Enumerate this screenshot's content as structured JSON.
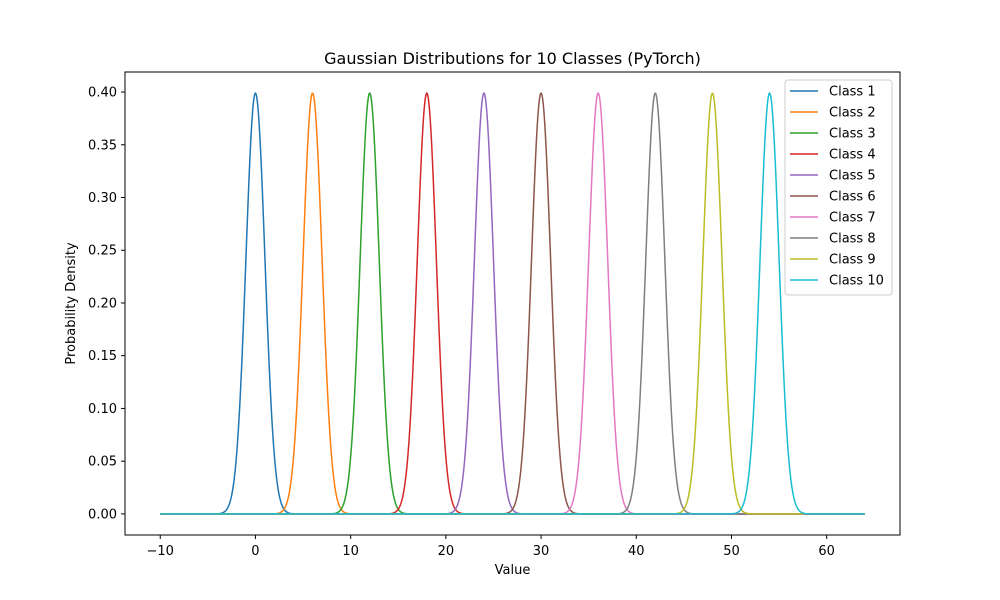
{
  "chart_data": {
    "type": "line",
    "title": "Gaussian Distributions for 10 Classes (PyTorch)",
    "xlabel": "Value",
    "ylabel": "Probability Density",
    "xlim": [
      -13.7,
      67.7
    ],
    "ylim": [
      -0.02,
      0.419
    ],
    "x_range": [
      -10,
      64
    ],
    "x_ticks": [
      -10,
      0,
      10,
      20,
      30,
      40,
      50,
      60
    ],
    "x_tick_labels": [
      "−10",
      "0",
      "10",
      "20",
      "30",
      "40",
      "50",
      "60"
    ],
    "y_ticks": [
      0.0,
      0.05,
      0.1,
      0.15,
      0.2,
      0.25,
      0.3,
      0.35,
      0.4
    ],
    "y_tick_labels": [
      "0.00",
      "0.05",
      "0.10",
      "0.15",
      "0.20",
      "0.25",
      "0.30",
      "0.35",
      "0.40"
    ],
    "grid": false,
    "legend": "top-right",
    "sigma": 1,
    "series": [
      {
        "name": "Class 1",
        "mean": 0,
        "color": "#1f77b4"
      },
      {
        "name": "Class 2",
        "mean": 6,
        "color": "#ff7f0e"
      },
      {
        "name": "Class 3",
        "mean": 12,
        "color": "#2ca02c"
      },
      {
        "name": "Class 4",
        "mean": 18,
        "color": "#d62728"
      },
      {
        "name": "Class 5",
        "mean": 24,
        "color": "#9467bd"
      },
      {
        "name": "Class 6",
        "mean": 30,
        "color": "#8c564b"
      },
      {
        "name": "Class 7",
        "mean": 36,
        "color": "#e377c2"
      },
      {
        "name": "Class 8",
        "mean": 42,
        "color": "#7f7f7f"
      },
      {
        "name": "Class 9",
        "mean": 48,
        "color": "#bcbd22"
      },
      {
        "name": "Class 10",
        "mean": 54,
        "color": "#17becf"
      }
    ]
  }
}
